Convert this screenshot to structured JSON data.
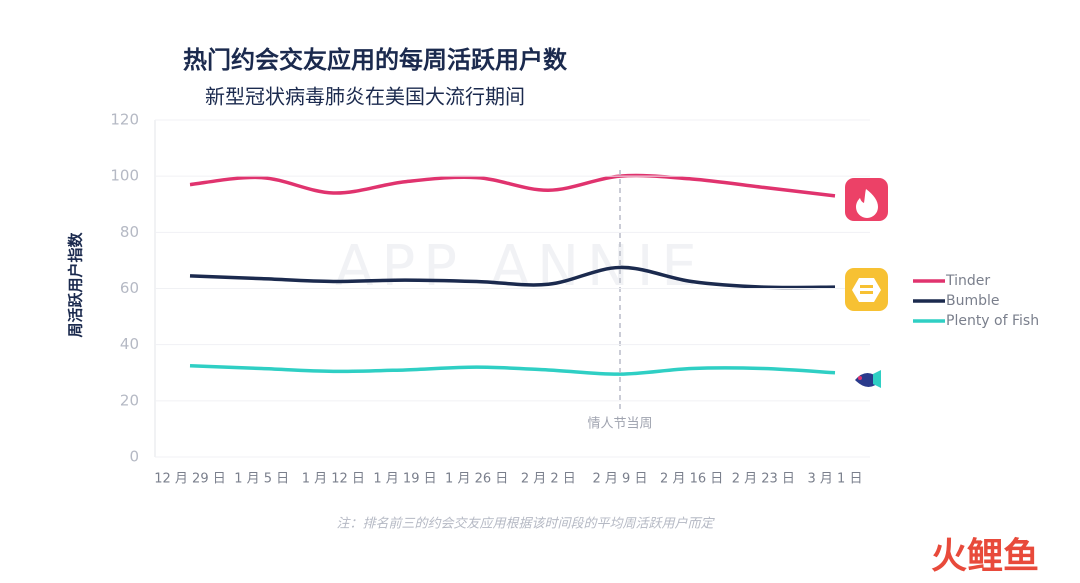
{
  "chart_data": {
    "type": "line",
    "title": "热门约会交友应用的每周活跃用户数",
    "subtitle": "新型冠状病毒肺炎在美国大流行期间",
    "y_label": "周活跃用户指数",
    "categories": [
      "12 月 29 日",
      "1 月 5 日",
      "1 月 12 日",
      "1 月 19 日",
      "1 月 26 日",
      "2 月 2 日",
      "2 月 9 日",
      "2 月 16 日",
      "2 月 23 日",
      "3 月 1 日"
    ],
    "series": [
      {
        "name": "Tinder",
        "color": "#e0336e",
        "values": [
          97,
          99.5,
          94,
          98,
          99.5,
          95,
          100,
          99,
          96,
          93
        ]
      },
      {
        "name": "Bumble",
        "color": "#1b2a4e",
        "values": [
          64.5,
          63.5,
          62.5,
          63,
          62.5,
          61.5,
          67.5,
          62.5,
          60.5,
          60.5
        ]
      },
      {
        "name": "Plenty of Fish",
        "color": "#2fcfc4",
        "values": [
          32.5,
          31.5,
          30.5,
          31,
          32,
          31,
          29.5,
          31.5,
          31.5,
          30
        ]
      }
    ],
    "ylim": [
      0,
      120
    ],
    "yticks": [
      0,
      20,
      40,
      60,
      80,
      100,
      120
    ],
    "grid": true,
    "annotations": [
      {
        "text": "情人节当周",
        "x": "2 月 9 日"
      }
    ],
    "legend": "right",
    "footnote": "注：排名前三的约会交友应用根据该时间段的平均周活跃用户而定",
    "watermark": "APP ANNIE",
    "brand": "火鲤鱼"
  }
}
